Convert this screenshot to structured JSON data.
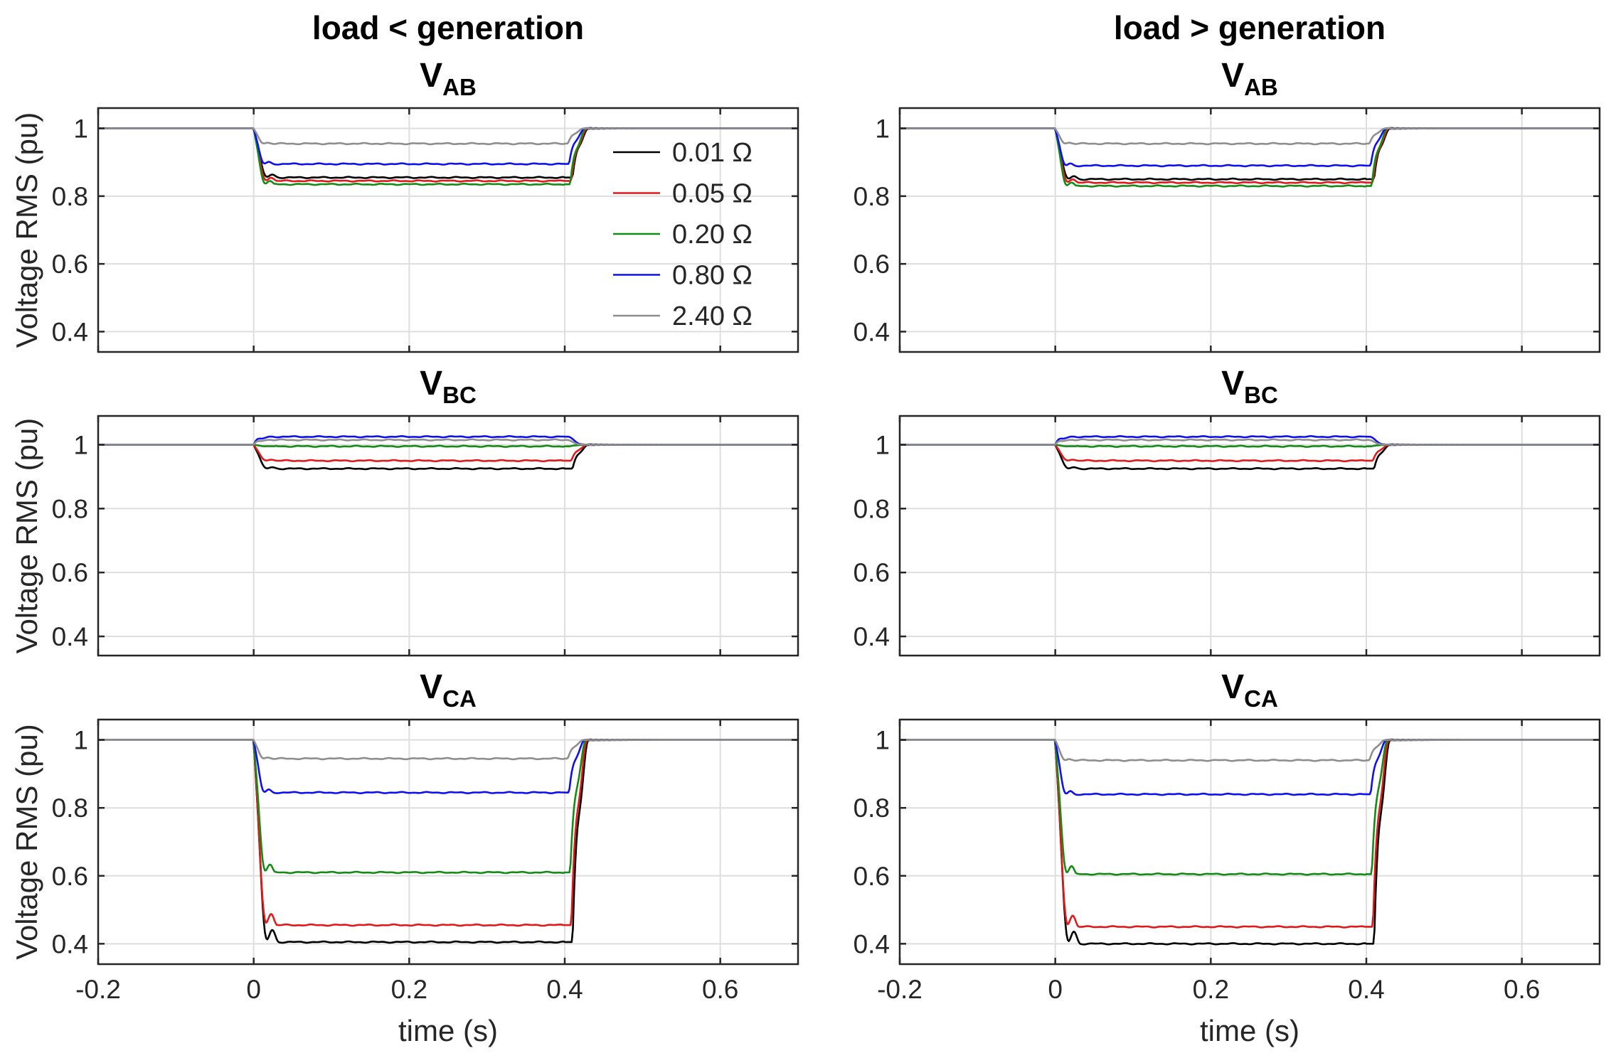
{
  "figure": {
    "columns": [
      "load < generation",
      "load > generation"
    ],
    "rows": [
      {
        "main": "V",
        "sub": "AB"
      },
      {
        "main": "V",
        "sub": "BC"
      },
      {
        "main": "V",
        "sub": "CA"
      }
    ]
  },
  "chart_data": {
    "type": "line",
    "xlabel": "time (s)",
    "ylabel": "Voltage RMS (pu)",
    "xlim": [
      -0.2,
      0.7
    ],
    "xticks": [
      -0.2,
      0,
      0.2,
      0.4,
      0.6
    ],
    "xtick_labels": [
      "-0.2",
      "0",
      "0.2",
      "0.4",
      "0.6"
    ],
    "yticks": [
      0.4,
      0.6,
      0.8,
      1
    ],
    "ytick_labels": [
      "0.4",
      "0.6",
      "0.8",
      "1"
    ],
    "ylims": {
      "AB": [
        0.34,
        1.06
      ],
      "BC": [
        0.34,
        1.09
      ],
      "CA": [
        0.34,
        1.06
      ]
    },
    "grid": true,
    "legend_position": "top-right of first panel",
    "fault_start": 0.0,
    "fault_end": 0.4,
    "series": [
      {
        "name": "0.01 Ω",
        "color": "#000000"
      },
      {
        "name": "0.05 Ω",
        "color": "#e0191b"
      },
      {
        "name": "0.20 Ω",
        "color": "#158a15"
      },
      {
        "name": "0.80 Ω",
        "color": "#1010ee"
      },
      {
        "name": "2.40 Ω",
        "color": "#8e8e8e"
      }
    ],
    "panels": [
      {
        "column": "load < generation",
        "phase": "AB",
        "prefault": 1.0,
        "fault_levels": {
          "0.01 Ω": 0.855,
          "0.05 Ω": 0.845,
          "0.20 Ω": 0.835,
          "0.80 Ω": 0.895,
          "2.40 Ω": 0.955
        }
      },
      {
        "column": "load > generation",
        "phase": "AB",
        "prefault": 1.0,
        "fault_levels": {
          "0.01 Ω": 0.85,
          "0.05 Ω": 0.84,
          "0.20 Ω": 0.83,
          "0.80 Ω": 0.89,
          "2.40 Ω": 0.955
        }
      },
      {
        "column": "load < generation",
        "phase": "BC",
        "prefault": 1.0,
        "fault_levels": {
          "0.01 Ω": 0.925,
          "0.05 Ω": 0.95,
          "0.20 Ω": 0.995,
          "0.80 Ω": 1.025,
          "2.40 Ω": 1.015
        }
      },
      {
        "column": "load > generation",
        "phase": "BC",
        "prefault": 1.0,
        "fault_levels": {
          "0.01 Ω": 0.925,
          "0.05 Ω": 0.95,
          "0.20 Ω": 0.995,
          "0.80 Ω": 1.025,
          "2.40 Ω": 1.015
        }
      },
      {
        "column": "load < generation",
        "phase": "CA",
        "prefault": 1.0,
        "fault_levels": {
          "0.01 Ω": 0.405,
          "0.05 Ω": 0.455,
          "0.20 Ω": 0.61,
          "0.80 Ω": 0.845,
          "2.40 Ω": 0.945
        }
      },
      {
        "column": "load > generation",
        "phase": "CA",
        "prefault": 1.0,
        "fault_levels": {
          "0.01 Ω": 0.4,
          "0.05 Ω": 0.45,
          "0.20 Ω": 0.605,
          "0.80 Ω": 0.84,
          "2.40 Ω": 0.94
        }
      }
    ]
  }
}
